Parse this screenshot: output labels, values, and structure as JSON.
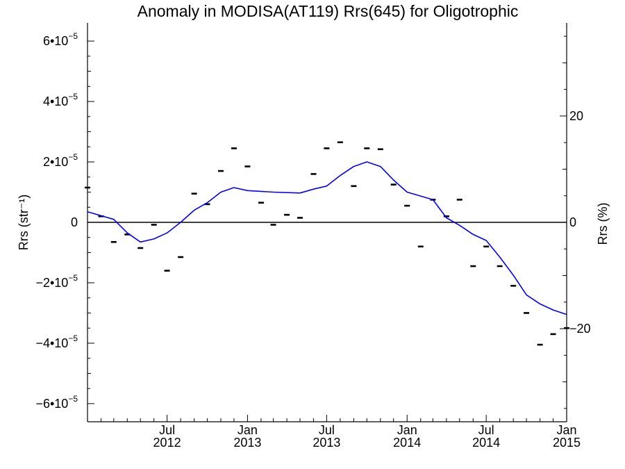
{
  "chart_data": {
    "type": "line",
    "title": "Anomaly in MODISA(AT119) Rrs(645) for Oligotrophic",
    "ylabel_left": "Rrs (str⁻¹)",
    "ylabel_right": "Rrs (%)",
    "ylim_left": [
      -6.6e-05,
      6.6e-05
    ],
    "ylim_right": [
      -37.5,
      37.5
    ],
    "xlim": [
      "2012-01-01",
      "2015-01-01"
    ],
    "y_ticks_left": [
      {
        "value": 6e-05,
        "mantissa": "6",
        "exp": "−5"
      },
      {
        "value": 4e-05,
        "mantissa": "4",
        "exp": "−5"
      },
      {
        "value": 2e-05,
        "mantissa": "2",
        "exp": "−5"
      },
      {
        "value": 0,
        "plain": "0"
      },
      {
        "value": -2e-05,
        "mantissa": "−2",
        "exp": "−5"
      },
      {
        "value": -4e-05,
        "mantissa": "−4",
        "exp": "−5"
      },
      {
        "value": -6e-05,
        "mantissa": "−6",
        "exp": "−5"
      }
    ],
    "y_ticks_right": [
      {
        "value": 20,
        "label": "20"
      },
      {
        "value": 0,
        "label": "0"
      },
      {
        "value": -20,
        "label": "−20"
      }
    ],
    "x_ticks": [
      {
        "date": "2012-07-01",
        "month": "Jul",
        "year": "2012"
      },
      {
        "date": "2013-01-01",
        "month": "Jan",
        "year": "2013"
      },
      {
        "date": "2013-07-01",
        "month": "Jul",
        "year": "2013"
      },
      {
        "date": "2014-01-01",
        "month": "Jan",
        "year": "2014"
      },
      {
        "date": "2014-07-01",
        "month": "Jul",
        "year": "2014"
      },
      {
        "date": "2015-01-01",
        "month": "Jan",
        "year": "2015"
      }
    ],
    "series": [
      {
        "kind": "points",
        "color": "#000000",
        "points": [
          {
            "x": "2012-01-01",
            "y": 1.15e-05
          },
          {
            "x": "2012-02-01",
            "y": 2e-06
          },
          {
            "x": "2012-03-01",
            "y": -6.5e-06
          },
          {
            "x": "2012-04-01",
            "y": -4e-06
          },
          {
            "x": "2012-05-01",
            "y": -8.5e-06
          },
          {
            "x": "2012-06-01",
            "y": -8e-07
          },
          {
            "x": "2012-07-01",
            "y": -1.6e-05
          },
          {
            "x": "2012-08-01",
            "y": -1.15e-05
          },
          {
            "x": "2012-09-01",
            "y": 9.5e-06
          },
          {
            "x": "2012-10-01",
            "y": 6e-06
          },
          {
            "x": "2012-11-01",
            "y": 1.7e-05
          },
          {
            "x": "2012-12-01",
            "y": 2.45e-05
          },
          {
            "x": "2013-01-01",
            "y": 1.85e-05
          },
          {
            "x": "2013-02-01",
            "y": 6.5e-06
          },
          {
            "x": "2013-03-01",
            "y": -8e-07
          },
          {
            "x": "2013-04-01",
            "y": 2.5e-06
          },
          {
            "x": "2013-05-01",
            "y": 1.5e-06
          },
          {
            "x": "2013-06-01",
            "y": 1.6e-05
          },
          {
            "x": "2013-07-01",
            "y": 2.45e-05
          },
          {
            "x": "2013-08-01",
            "y": 2.65e-05
          },
          {
            "x": "2013-09-01",
            "y": 1.2e-05
          },
          {
            "x": "2013-10-01",
            "y": 2.45e-05
          },
          {
            "x": "2013-11-01",
            "y": 2.42e-05
          },
          {
            "x": "2013-12-01",
            "y": 1.25e-05
          },
          {
            "x": "2014-01-01",
            "y": 5.5e-06
          },
          {
            "x": "2014-02-01",
            "y": -8e-06
          },
          {
            "x": "2014-03-01",
            "y": 7.5e-06
          },
          {
            "x": "2014-04-01",
            "y": 2e-06
          },
          {
            "x": "2014-05-01",
            "y": 7.5e-06
          },
          {
            "x": "2014-06-01",
            "y": -1.45e-05
          },
          {
            "x": "2014-07-01",
            "y": -8e-06
          },
          {
            "x": "2014-08-01",
            "y": -1.45e-05
          },
          {
            "x": "2014-09-01",
            "y": -2.1e-05
          },
          {
            "x": "2014-10-01",
            "y": -3e-05
          },
          {
            "x": "2014-11-01",
            "y": -4.05e-05
          },
          {
            "x": "2014-12-01",
            "y": -3.7e-05
          },
          {
            "x": "2015-01-01",
            "y": -3.5e-05
          }
        ]
      },
      {
        "kind": "line",
        "color": "#0000ff",
        "points": [
          {
            "x": "2012-01-01",
            "y": 3.5e-06
          },
          {
            "x": "2012-03-01",
            "y": 1e-06
          },
          {
            "x": "2012-04-01",
            "y": -3.5e-06
          },
          {
            "x": "2012-05-01",
            "y": -6.5e-06
          },
          {
            "x": "2012-06-01",
            "y": -5.5e-06
          },
          {
            "x": "2012-07-01",
            "y": -3.5e-06
          },
          {
            "x": "2012-08-01",
            "y": 0.0
          },
          {
            "x": "2012-09-01",
            "y": 4e-06
          },
          {
            "x": "2012-10-01",
            "y": 6.5e-06
          },
          {
            "x": "2012-11-01",
            "y": 1e-05
          },
          {
            "x": "2012-12-01",
            "y": 1.15e-05
          },
          {
            "x": "2013-01-01",
            "y": 1.05e-05
          },
          {
            "x": "2013-03-01",
            "y": 1e-05
          },
          {
            "x": "2013-05-01",
            "y": 9.7e-06
          },
          {
            "x": "2013-06-01",
            "y": 1.1e-05
          },
          {
            "x": "2013-07-01",
            "y": 1.2e-05
          },
          {
            "x": "2013-08-01",
            "y": 1.55e-05
          },
          {
            "x": "2013-09-01",
            "y": 1.85e-05
          },
          {
            "x": "2013-10-01",
            "y": 2e-05
          },
          {
            "x": "2013-11-01",
            "y": 1.85e-05
          },
          {
            "x": "2013-12-01",
            "y": 1.4e-05
          },
          {
            "x": "2014-01-01",
            "y": 1e-05
          },
          {
            "x": "2014-03-01",
            "y": 7.5e-06
          },
          {
            "x": "2014-04-01",
            "y": 1.5e-06
          },
          {
            "x": "2014-05-01",
            "y": -1e-06
          },
          {
            "x": "2014-06-01",
            "y": -4e-06
          },
          {
            "x": "2014-07-01",
            "y": -6e-06
          },
          {
            "x": "2014-08-01",
            "y": -1.15e-05
          },
          {
            "x": "2014-09-01",
            "y": -1.75e-05
          },
          {
            "x": "2014-10-01",
            "y": -2.4e-05
          },
          {
            "x": "2014-11-01",
            "y": -2.7e-05
          },
          {
            "x": "2014-12-01",
            "y": -2.9e-05
          },
          {
            "x": "2015-01-01",
            "y": -3.05e-05
          }
        ]
      }
    ]
  }
}
